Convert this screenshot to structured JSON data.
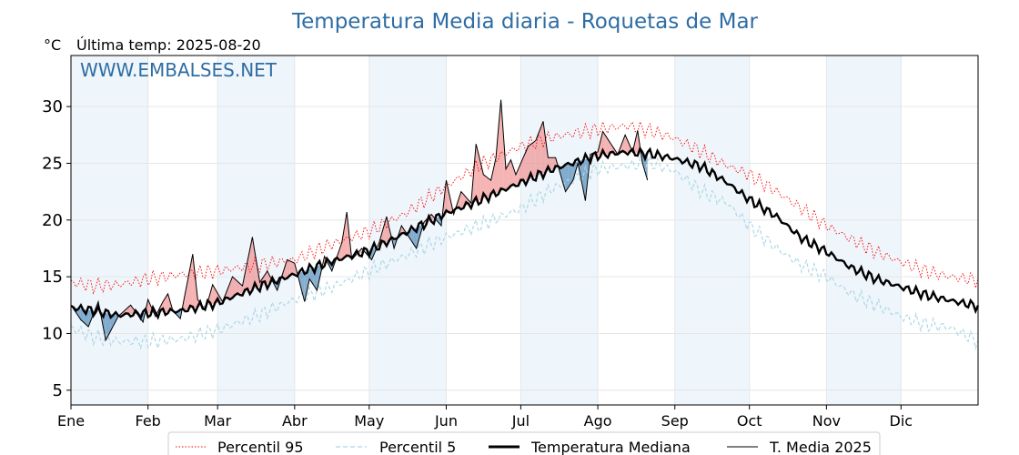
{
  "chart_data": {
    "type": "line",
    "title": "Temperatura Media diaria - Roquetas de Mar",
    "ylabel": "°C",
    "subtitle": "Última temp: 2025-08-20",
    "watermark": "WWW.EMBALSES.NET",
    "ylim": [
      3.7,
      34.5
    ],
    "yticks": [
      5,
      10,
      15,
      20,
      25,
      30
    ],
    "xlim": [
      1,
      366
    ],
    "months": [
      "Ene",
      "Feb",
      "Mar",
      "Abr",
      "May",
      "Jun",
      "Jul",
      "Ago",
      "Sep",
      "Oct",
      "Nov",
      "Dic"
    ],
    "month_start_days": [
      1,
      32,
      60,
      91,
      121,
      152,
      182,
      213,
      244,
      274,
      305,
      335
    ],
    "grid": true,
    "legend_position": "bottom",
    "series": [
      {
        "name": "Percentil 95",
        "color": "#ff0000",
        "style": "dotted",
        "keypoints": [
          [
            1,
            14.5
          ],
          [
            10,
            14.2
          ],
          [
            20,
            14.3
          ],
          [
            32,
            14.8
          ],
          [
            45,
            15.2
          ],
          [
            60,
            15.5
          ],
          [
            75,
            16.0
          ],
          [
            91,
            16.5
          ],
          [
            105,
            17.8
          ],
          [
            121,
            19.0
          ],
          [
            135,
            20.5
          ],
          [
            152,
            23.0
          ],
          [
            165,
            24.8
          ],
          [
            182,
            26.5
          ],
          [
            195,
            27.3
          ],
          [
            213,
            28.0
          ],
          [
            225,
            28.3
          ],
          [
            235,
            27.8
          ],
          [
            244,
            27.2
          ],
          [
            255,
            26.0
          ],
          [
            265,
            24.8
          ],
          [
            274,
            24.0
          ],
          [
            285,
            22.5
          ],
          [
            295,
            21.0
          ],
          [
            305,
            19.5
          ],
          [
            315,
            18.3
          ],
          [
            325,
            17.2
          ],
          [
            335,
            16.3
          ],
          [
            345,
            15.5
          ],
          [
            355,
            15.0
          ],
          [
            366,
            14.7
          ]
        ]
      },
      {
        "name": "Percentil 5",
        "color": "#add8e6",
        "style": "dashed",
        "keypoints": [
          [
            1,
            10.5
          ],
          [
            10,
            9.7
          ],
          [
            20,
            9.3
          ],
          [
            32,
            9.3
          ],
          [
            45,
            9.5
          ],
          [
            60,
            10.3
          ],
          [
            75,
            11.5
          ],
          [
            91,
            13.0
          ],
          [
            105,
            14.0
          ],
          [
            121,
            15.5
          ],
          [
            135,
            16.8
          ],
          [
            152,
            18.5
          ],
          [
            165,
            19.5
          ],
          [
            182,
            21.0
          ],
          [
            195,
            22.8
          ],
          [
            213,
            24.5
          ],
          [
            225,
            24.8
          ],
          [
            235,
            25.0
          ],
          [
            244,
            24.3
          ],
          [
            255,
            22.5
          ],
          [
            265,
            21.5
          ],
          [
            274,
            19.5
          ],
          [
            285,
            17.5
          ],
          [
            295,
            16.0
          ],
          [
            305,
            15.0
          ],
          [
            315,
            13.5
          ],
          [
            325,
            12.5
          ],
          [
            335,
            11.5
          ],
          [
            345,
            10.8
          ],
          [
            355,
            10.5
          ],
          [
            366,
            9.3
          ]
        ]
      },
      {
        "name": "Temperatura Mediana",
        "color": "#000000",
        "style": "solid-thick",
        "keypoints": [
          [
            1,
            12.3
          ],
          [
            10,
            12.0
          ],
          [
            20,
            11.6
          ],
          [
            32,
            11.8
          ],
          [
            45,
            12.0
          ],
          [
            60,
            12.7
          ],
          [
            75,
            14.0
          ],
          [
            91,
            15.2
          ],
          [
            105,
            16.3
          ],
          [
            121,
            17.3
          ],
          [
            135,
            18.8
          ],
          [
            152,
            20.6
          ],
          [
            165,
            21.7
          ],
          [
            182,
            23.3
          ],
          [
            195,
            24.5
          ],
          [
            213,
            25.7
          ],
          [
            225,
            26.0
          ],
          [
            235,
            25.8
          ],
          [
            244,
            25.4
          ],
          [
            255,
            24.7
          ],
          [
            265,
            23.3
          ],
          [
            274,
            21.8
          ],
          [
            285,
            20.3
          ],
          [
            295,
            18.4
          ],
          [
            305,
            17.2
          ],
          [
            315,
            15.8
          ],
          [
            325,
            14.8
          ],
          [
            335,
            14.1
          ],
          [
            345,
            13.4
          ],
          [
            355,
            12.9
          ],
          [
            366,
            12.4
          ]
        ]
      },
      {
        "name": "T. Media 2025",
        "color": "#000000",
        "style": "solid-thin",
        "keypoints": [
          [
            1,
            12.5
          ],
          [
            5,
            11.2
          ],
          [
            8,
            10.6
          ],
          [
            12,
            12.8
          ],
          [
            15,
            9.4
          ],
          [
            20,
            11.5
          ],
          [
            25,
            12.5
          ],
          [
            30,
            11.0
          ],
          [
            32,
            13.0
          ],
          [
            35,
            11.5
          ],
          [
            38,
            12.8
          ],
          [
            40,
            13.5
          ],
          [
            42,
            12.0
          ],
          [
            45,
            11.3
          ],
          [
            50,
            17.0
          ],
          [
            52,
            13.0
          ],
          [
            55,
            12.0
          ],
          [
            58,
            14.3
          ],
          [
            62,
            12.8
          ],
          [
            66,
            15.0
          ],
          [
            70,
            14.2
          ],
          [
            74,
            18.5
          ],
          [
            77,
            14.5
          ],
          [
            80,
            15.5
          ],
          [
            84,
            13.8
          ],
          [
            88,
            16.5
          ],
          [
            91,
            16.2
          ],
          [
            95,
            12.8
          ],
          [
            97,
            14.8
          ],
          [
            100,
            13.8
          ],
          [
            103,
            16.8
          ],
          [
            106,
            15.5
          ],
          [
            110,
            18.0
          ],
          [
            112,
            20.7
          ],
          [
            114,
            16.5
          ],
          [
            118,
            17.5
          ],
          [
            122,
            16.5
          ],
          [
            125,
            18.0
          ],
          [
            128,
            20.3
          ],
          [
            131,
            17.5
          ],
          [
            134,
            19.5
          ],
          [
            137,
            18.5
          ],
          [
            140,
            17.5
          ],
          [
            143,
            19.8
          ],
          [
            146,
            20.5
          ],
          [
            150,
            19.5
          ],
          [
            152,
            23.5
          ],
          [
            155,
            20.5
          ],
          [
            158,
            22.5
          ],
          [
            160,
            22.0
          ],
          [
            162,
            21.5
          ],
          [
            164,
            26.7
          ],
          [
            167,
            24.0
          ],
          [
            170,
            23.5
          ],
          [
            172,
            25.5
          ],
          [
            174,
            30.6
          ],
          [
            176,
            24.5
          ],
          [
            178,
            25.3
          ],
          [
            180,
            24.0
          ],
          [
            182,
            25.0
          ],
          [
            185,
            26.5
          ],
          [
            188,
            27.0
          ],
          [
            191,
            28.7
          ],
          [
            193,
            25.5
          ],
          [
            196,
            25.5
          ],
          [
            200,
            22.5
          ],
          [
            203,
            23.5
          ],
          [
            205,
            25.0
          ],
          [
            208,
            21.7
          ],
          [
            210,
            25.8
          ],
          [
            213,
            26.0
          ],
          [
            215,
            27.8
          ],
          [
            218,
            26.8
          ],
          [
            221,
            25.8
          ],
          [
            224,
            27.5
          ],
          [
            227,
            26.0
          ],
          [
            229,
            27.9
          ],
          [
            231,
            25.0
          ],
          [
            233,
            23.5
          ]
        ]
      }
    ],
    "legend": [
      {
        "label": "Percentil 95"
      },
      {
        "label": "Percentil 5"
      },
      {
        "label": "Temperatura Mediana"
      },
      {
        "label": "T. Media 2025"
      }
    ],
    "colors": {
      "title": "#2e6da4",
      "fill_above": "#f08080",
      "fill_below": "#4682b4",
      "month_band": "#eef5fb"
    }
  }
}
